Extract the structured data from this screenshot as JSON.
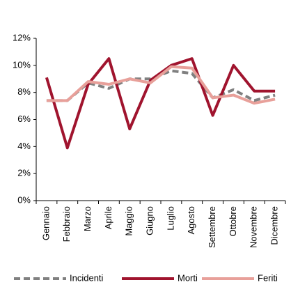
{
  "chart_data": {
    "type": "line",
    "categories": [
      "Gennaio",
      "Febbraio",
      "Marzo",
      "Aprile",
      "Maggio",
      "Giugno",
      "Luglio",
      "Agosto",
      "Settembre",
      "Ottobre",
      "Novembre",
      "Dicembre"
    ],
    "series": [
      {
        "name": "Incidenti",
        "color": "#808080",
        "dashed": true,
        "values": [
          7.4,
          7.4,
          8.7,
          8.3,
          9.0,
          9.0,
          9.6,
          9.4,
          7.6,
          8.2,
          7.4,
          7.8
        ]
      },
      {
        "name": "Morti",
        "color": "#a0142e",
        "values": [
          9.1,
          3.9,
          8.6,
          10.5,
          5.3,
          8.9,
          10.0,
          10.5,
          6.3,
          10.0,
          8.1,
          8.1
        ]
      },
      {
        "name": "Feriti",
        "color": "#e8a09a",
        "values": [
          7.4,
          7.4,
          8.8,
          8.6,
          9.0,
          8.7,
          9.9,
          9.8,
          7.6,
          7.8,
          7.2,
          7.5
        ]
      }
    ],
    "ylim": [
      0,
      12
    ],
    "yticks": [
      {
        "value": 0,
        "label": "0%"
      },
      {
        "value": 2,
        "label": "2%"
      },
      {
        "value": 4,
        "label": "4%"
      },
      {
        "value": 6,
        "label": "6%"
      },
      {
        "value": 8,
        "label": "8%"
      },
      {
        "value": 10,
        "label": "10%"
      },
      {
        "value": 12,
        "label": "12%"
      }
    ],
    "grid": false,
    "legend": "bottom"
  }
}
